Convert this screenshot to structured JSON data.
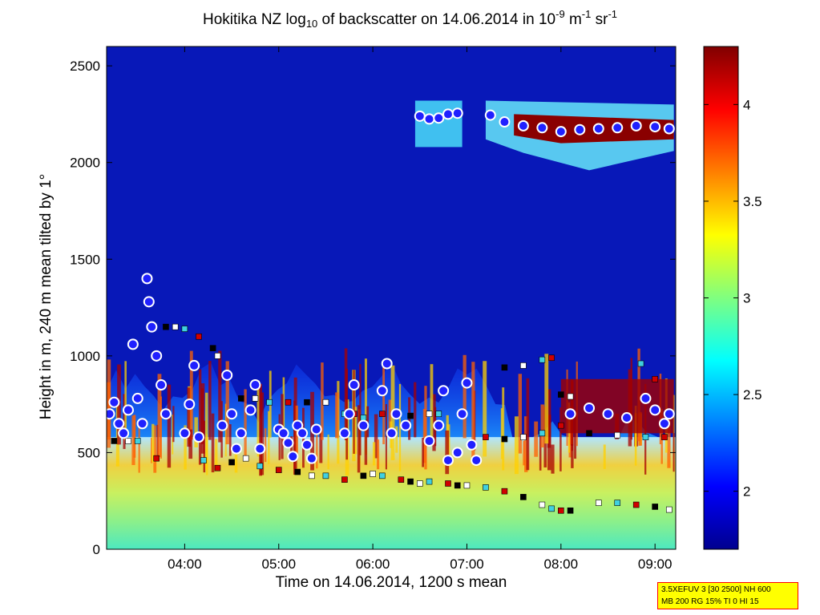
{
  "chart_data": {
    "type": "heatmap",
    "title_parts": {
      "t1": "Hokitika NZ log",
      "t1_sub": "10",
      "t2": " of backscatter on 14.06.2014 in 10",
      "t2_sup": "-9",
      "t3": " m",
      "t3_sup": "-1",
      "t4": " sr",
      "t4_sup": "-1"
    },
    "xlabel": "Time on 14.06.2014, 1200 s mean",
    "ylabel": "Height in m, 240 m mean tilted by 1°",
    "xlim": [
      3.17,
      9.22
    ],
    "ylim": [
      0,
      2600
    ],
    "xticks": [
      {
        "value": 4,
        "label": "04:00"
      },
      {
        "value": 5,
        "label": "05:00"
      },
      {
        "value": 6,
        "label": "06:00"
      },
      {
        "value": 7,
        "label": "07:00"
      },
      {
        "value": 8,
        "label": "08:00"
      },
      {
        "value": 9,
        "label": "09:00"
      }
    ],
    "yticks": [
      {
        "value": 0,
        "label": "0"
      },
      {
        "value": 500,
        "label": "500"
      },
      {
        "value": 1000,
        "label": "1000"
      },
      {
        "value": 1500,
        "label": "1500"
      },
      {
        "value": 2000,
        "label": "2000"
      },
      {
        "value": 2500,
        "label": "2500"
      }
    ],
    "colorbar": {
      "colormap": "jet",
      "range": [
        1.7,
        4.3
      ],
      "ticks": [
        {
          "value": 2,
          "label": "2"
        },
        {
          "value": 2.5,
          "label": "2.5"
        },
        {
          "value": 3,
          "label": "3"
        },
        {
          "value": 3.5,
          "label": "3.5"
        },
        {
          "value": 4,
          "label": "4"
        }
      ]
    },
    "cloud_base_series": {
      "marker": "blue circle with white/red outline",
      "points": [
        [
          3.2,
          700
        ],
        [
          3.25,
          760
        ],
        [
          3.3,
          650
        ],
        [
          3.35,
          600
        ],
        [
          3.4,
          720
        ],
        [
          3.45,
          1060
        ],
        [
          3.5,
          780
        ],
        [
          3.55,
          650
        ],
        [
          3.6,
          1400
        ],
        [
          3.62,
          1280
        ],
        [
          3.65,
          1150
        ],
        [
          3.7,
          1000
        ],
        [
          3.75,
          850
        ],
        [
          3.8,
          700
        ],
        [
          4.0,
          600
        ],
        [
          4.05,
          750
        ],
        [
          4.1,
          950
        ],
        [
          4.15,
          580
        ],
        [
          4.4,
          640
        ],
        [
          4.45,
          900
        ],
        [
          4.5,
          700
        ],
        [
          4.55,
          520
        ],
        [
          4.6,
          600
        ],
        [
          4.7,
          720
        ],
        [
          4.75,
          850
        ],
        [
          4.8,
          520
        ],
        [
          5.0,
          620
        ],
        [
          5.05,
          600
        ],
        [
          5.1,
          550
        ],
        [
          5.15,
          480
        ],
        [
          5.2,
          640
        ],
        [
          5.25,
          600
        ],
        [
          5.3,
          540
        ],
        [
          5.35,
          470
        ],
        [
          5.4,
          620
        ],
        [
          5.7,
          600
        ],
        [
          5.75,
          700
        ],
        [
          5.8,
          850
        ],
        [
          5.9,
          640
        ],
        [
          6.1,
          820
        ],
        [
          6.15,
          960
        ],
        [
          6.2,
          600
        ],
        [
          6.25,
          700
        ],
        [
          6.35,
          640
        ],
        [
          6.6,
          560
        ],
        [
          6.7,
          640
        ],
        [
          6.75,
          820
        ],
        [
          6.8,
          460
        ],
        [
          6.9,
          500
        ],
        [
          6.95,
          700
        ],
        [
          7.0,
          860
        ],
        [
          7.05,
          540
        ],
        [
          7.1,
          460
        ],
        [
          6.5,
          2240
        ],
        [
          6.6,
          2225
        ],
        [
          6.7,
          2230
        ],
        [
          6.8,
          2250
        ],
        [
          6.9,
          2255
        ],
        [
          7.25,
          2245
        ],
        [
          7.4,
          2210
        ],
        [
          7.6,
          2190
        ],
        [
          7.8,
          2180
        ],
        [
          8.0,
          2160
        ],
        [
          8.2,
          2170
        ],
        [
          8.4,
          2175
        ],
        [
          8.6,
          2180
        ],
        [
          8.8,
          2190
        ],
        [
          9.0,
          2185
        ],
        [
          9.15,
          2175
        ],
        [
          8.1,
          700
        ],
        [
          8.3,
          730
        ],
        [
          8.5,
          700
        ],
        [
          8.7,
          680
        ],
        [
          8.9,
          780
        ],
        [
          9.0,
          720
        ],
        [
          9.1,
          650
        ],
        [
          9.15,
          700
        ]
      ]
    },
    "layer_series": {
      "marker": "squares (black, white, cyan, red)",
      "points": [
        [
          3.25,
          560
        ],
        [
          3.4,
          560
        ],
        [
          3.5,
          560
        ],
        [
          3.7,
          470
        ],
        [
          3.8,
          1150
        ],
        [
          3.9,
          1150
        ],
        [
          4.0,
          1140
        ],
        [
          4.15,
          1100
        ],
        [
          4.3,
          1040
        ],
        [
          4.35,
          1000
        ],
        [
          4.2,
          460
        ],
        [
          4.35,
          420
        ],
        [
          4.5,
          450
        ],
        [
          4.65,
          470
        ],
        [
          4.8,
          430
        ],
        [
          5.0,
          410
        ],
        [
          5.2,
          400
        ],
        [
          5.35,
          380
        ],
        [
          5.5,
          380
        ],
        [
          5.7,
          360
        ],
        [
          5.9,
          380
        ],
        [
          6.0,
          390
        ],
        [
          6.1,
          380
        ],
        [
          6.3,
          360
        ],
        [
          6.4,
          350
        ],
        [
          6.5,
          340
        ],
        [
          6.6,
          350
        ],
        [
          6.8,
          340
        ],
        [
          6.9,
          330
        ],
        [
          7.0,
          330
        ],
        [
          7.2,
          320
        ],
        [
          7.4,
          300
        ],
        [
          7.6,
          270
        ],
        [
          7.8,
          230
        ],
        [
          7.9,
          210
        ],
        [
          8.0,
          200
        ],
        [
          8.1,
          200
        ],
        [
          8.4,
          240
        ],
        [
          8.6,
          240
        ],
        [
          8.8,
          230
        ],
        [
          9.0,
          220
        ],
        [
          9.15,
          205
        ],
        [
          5.9,
          680
        ],
        [
          6.1,
          700
        ],
        [
          6.4,
          690
        ],
        [
          6.6,
          700
        ],
        [
          6.7,
          700
        ],
        [
          7.2,
          580
        ],
        [
          7.4,
          570
        ],
        [
          7.6,
          580
        ],
        [
          7.8,
          600
        ],
        [
          8.0,
          640
        ],
        [
          8.3,
          600
        ],
        [
          8.6,
          590
        ],
        [
          8.9,
          580
        ],
        [
          9.1,
          580
        ],
        [
          7.4,
          940
        ],
        [
          7.6,
          950
        ],
        [
          7.8,
          980
        ],
        [
          7.9,
          990
        ],
        [
          8.0,
          800
        ],
        [
          8.1,
          790
        ],
        [
          8.85,
          960
        ],
        [
          9.0,
          880
        ],
        [
          4.6,
          780
        ],
        [
          4.75,
          780
        ],
        [
          4.9,
          760
        ],
        [
          5.1,
          760
        ],
        [
          5.3,
          760
        ],
        [
          5.5,
          760
        ],
        [
          5.7,
          700
        ],
        [
          5.8,
          700
        ]
      ]
    }
  },
  "infobox": {
    "line1": "3.5XEFUV 3 [30 2500] NH 600",
    "line2": "MB 200 RG 15% TI 0 HI 15"
  }
}
